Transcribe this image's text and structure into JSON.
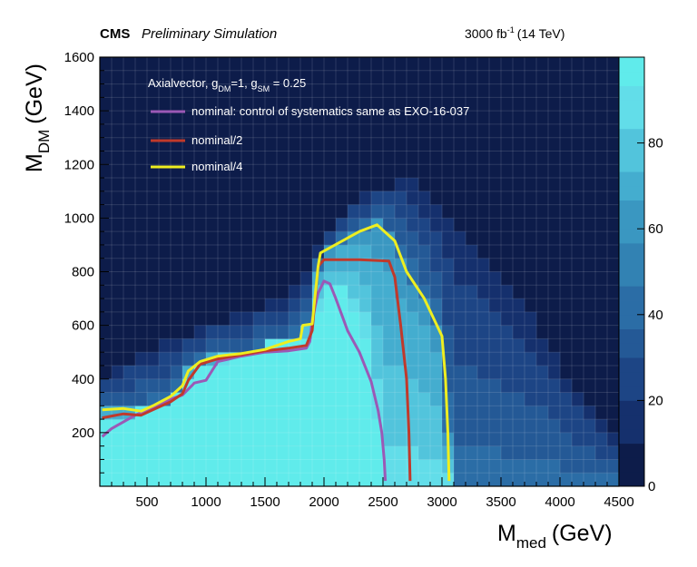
{
  "header": {
    "experiment": "CMS",
    "status": "Preliminary Simulation",
    "lumi_value": "3000 fb",
    "lumi_exp": "-1",
    "energy": "(14 TeV)"
  },
  "chart_data": {
    "type": "heatmap",
    "xlabel": {
      "main": "M",
      "sub": "med",
      "unit": "(GeV)"
    },
    "ylabel": {
      "main": "M",
      "sub": "DM",
      "unit": "(GeV)"
    },
    "xlim": [
      100,
      4500
    ],
    "ylim": [
      0,
      1600
    ],
    "x_ticks": [
      500,
      1000,
      1500,
      2000,
      2500,
      3000,
      3500,
      4000,
      4500
    ],
    "y_ticks": [
      200,
      400,
      600,
      800,
      1000,
      1200,
      1400,
      1600
    ],
    "z_range": [
      0,
      100
    ],
    "z_ticks": [
      0,
      20,
      40,
      60,
      80
    ],
    "grid": true,
    "legend_position": "top-left",
    "legend_header": {
      "text": "Axialvector, g",
      "sub1": "DM",
      "mid": "=1, g",
      "sub2": "SM",
      "tail": " = 0.25"
    },
    "palette": [
      "#0d1c4a",
      "#15306d",
      "#1d4585",
      "#245996",
      "#2b6da6",
      "#3282b3",
      "#3a97c1",
      "#44adcf",
      "#52c4dc",
      "#62dde9"
    ],
    "peak_color": "#60ebeb",
    "series": [
      {
        "name": "nominal: control of systematics same as EXO-16-037",
        "color": "#9b59b6",
        "points": [
          [
            120,
            185
          ],
          [
            200,
            215
          ],
          [
            300,
            240
          ],
          [
            400,
            265
          ],
          [
            500,
            285
          ],
          [
            600,
            305
          ],
          [
            700,
            325
          ],
          [
            800,
            340
          ],
          [
            880,
            375
          ],
          [
            900,
            385
          ],
          [
            1000,
            395
          ],
          [
            1100,
            465
          ],
          [
            1200,
            475
          ],
          [
            1300,
            485
          ],
          [
            1500,
            500
          ],
          [
            1700,
            505
          ],
          [
            1850,
            515
          ],
          [
            1880,
            540
          ],
          [
            1900,
            620
          ],
          [
            1950,
            720
          ],
          [
            2000,
            765
          ],
          [
            2050,
            755
          ],
          [
            2100,
            700
          ],
          [
            2200,
            580
          ],
          [
            2300,
            500
          ],
          [
            2400,
            390
          ],
          [
            2460,
            280
          ],
          [
            2490,
            200
          ],
          [
            2510,
            100
          ],
          [
            2520,
            20
          ]
        ]
      },
      {
        "name": "nominal/2",
        "color": "#c0392b",
        "points": [
          [
            120,
            255
          ],
          [
            300,
            270
          ],
          [
            450,
            265
          ],
          [
            550,
            285
          ],
          [
            700,
            315
          ],
          [
            800,
            345
          ],
          [
            850,
            395
          ],
          [
            950,
            455
          ],
          [
            1100,
            475
          ],
          [
            1300,
            490
          ],
          [
            1500,
            505
          ],
          [
            1700,
            515
          ],
          [
            1850,
            525
          ],
          [
            1900,
            580
          ],
          [
            1950,
            820
          ],
          [
            2000,
            845
          ],
          [
            2300,
            845
          ],
          [
            2550,
            840
          ],
          [
            2600,
            780
          ],
          [
            2650,
            600
          ],
          [
            2700,
            400
          ],
          [
            2720,
            200
          ],
          [
            2730,
            20
          ]
        ]
      },
      {
        "name": "nominal/4",
        "color": "#eeee20",
        "points": [
          [
            120,
            285
          ],
          [
            300,
            290
          ],
          [
            450,
            280
          ],
          [
            550,
            300
          ],
          [
            700,
            335
          ],
          [
            800,
            375
          ],
          [
            850,
            430
          ],
          [
            950,
            465
          ],
          [
            1100,
            485
          ],
          [
            1300,
            495
          ],
          [
            1500,
            510
          ],
          [
            1700,
            540
          ],
          [
            1800,
            550
          ],
          [
            1820,
            600
          ],
          [
            1900,
            605
          ],
          [
            1950,
            820
          ],
          [
            1970,
            870
          ],
          [
            2300,
            950
          ],
          [
            2450,
            975
          ],
          [
            2600,
            915
          ],
          [
            2700,
            800
          ],
          [
            2850,
            700
          ],
          [
            3000,
            560
          ],
          [
            3030,
            400
          ],
          [
            3050,
            200
          ],
          [
            3060,
            20
          ]
        ]
      }
    ]
  }
}
